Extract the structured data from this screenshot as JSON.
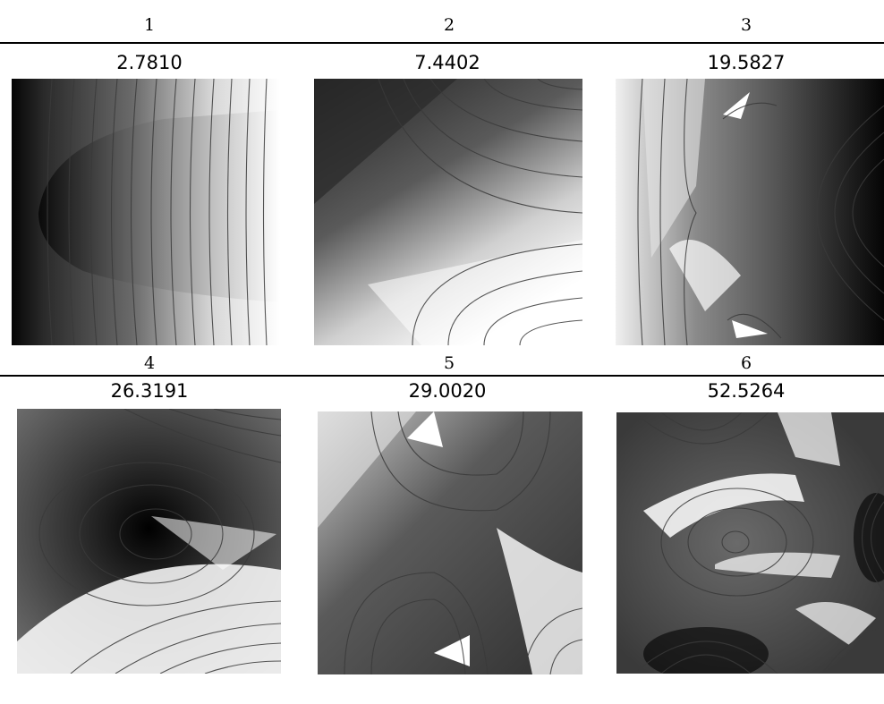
{
  "figure": {
    "modes": [
      {
        "index": "1",
        "eigenvalue": "2.7810"
      },
      {
        "index": "2",
        "eigenvalue": "7.4402"
      },
      {
        "index": "3",
        "eigenvalue": "19.5827"
      },
      {
        "index": "4",
        "eigenvalue": "26.3191"
      },
      {
        "index": "5",
        "eigenvalue": "29.0020"
      },
      {
        "index": "6",
        "eigenvalue": "52.5264"
      }
    ]
  }
}
